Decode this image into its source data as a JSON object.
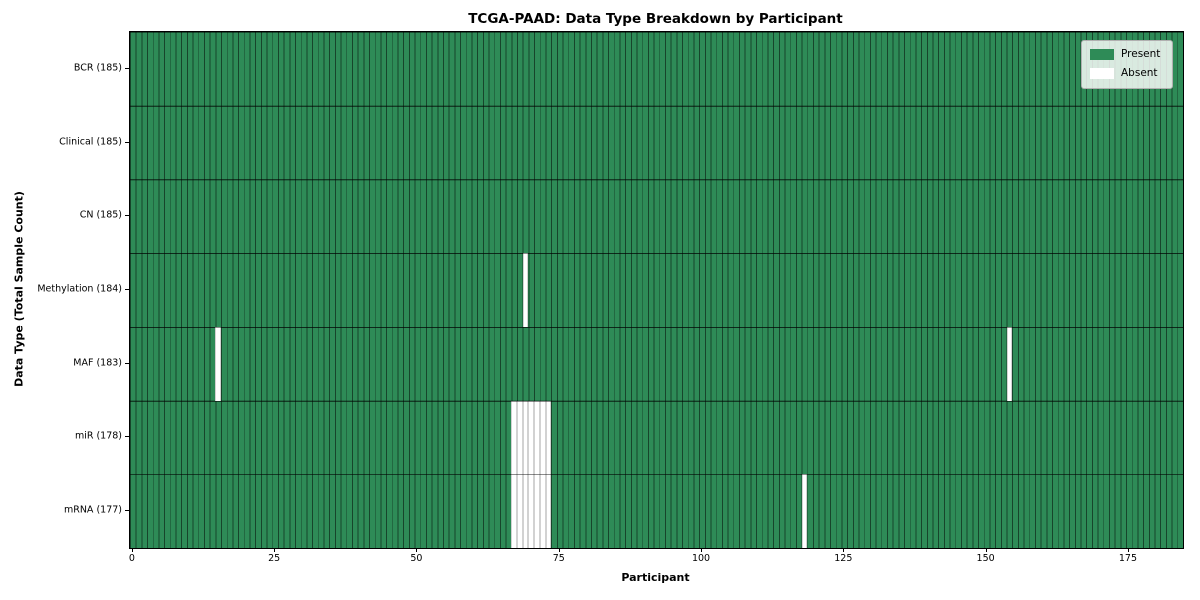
{
  "figure": {
    "title": "TCGA-PAAD: Data Type Breakdown by Participant",
    "xlabel": "Participant",
    "ylabel": "Data Type (Total Sample Count)"
  },
  "legend": {
    "items": [
      {
        "label": "Present",
        "color": "#2e8b57"
      },
      {
        "label": "Absent",
        "color": "#ffffff"
      }
    ]
  },
  "chart_data": {
    "type": "heatmap",
    "title": "TCGA-PAAD: Data Type Breakdown by Participant",
    "xlabel": "Participant",
    "ylabel": "Data Type (Total Sample Count)",
    "participants_total": 185,
    "xlim": [
      -0.5,
      184.5
    ],
    "x_ticks": [
      0,
      25,
      50,
      75,
      100,
      125,
      150,
      175
    ],
    "grid": false,
    "legend_position": "upper right",
    "colors": {
      "present": "#2e8b57",
      "absent": "#ffffff",
      "bar_edge": "rgba(0,0,0,0.5)"
    },
    "rows": [
      {
        "label": "BCR (185)",
        "data_type": "BCR",
        "sample_count": 185,
        "absent_participants": []
      },
      {
        "label": "Clinical (185)",
        "data_type": "Clinical",
        "sample_count": 185,
        "absent_participants": []
      },
      {
        "label": "CN (185)",
        "data_type": "CN",
        "sample_count": 185,
        "absent_participants": []
      },
      {
        "label": "Methylation (184)",
        "data_type": "Methylation",
        "sample_count": 184,
        "absent_participants": [
          69
        ]
      },
      {
        "label": "MAF (183)",
        "data_type": "MAF",
        "sample_count": 183,
        "absent_participants": [
          15,
          154
        ]
      },
      {
        "label": "miR (178)",
        "data_type": "miR",
        "sample_count": 178,
        "absent_participants": [
          67,
          68,
          69,
          70,
          71,
          72,
          73
        ]
      },
      {
        "label": "mRNA (177)",
        "data_type": "mRNA",
        "sample_count": 177,
        "absent_participants": [
          67,
          68,
          69,
          70,
          71,
          72,
          73,
          118
        ]
      }
    ]
  }
}
